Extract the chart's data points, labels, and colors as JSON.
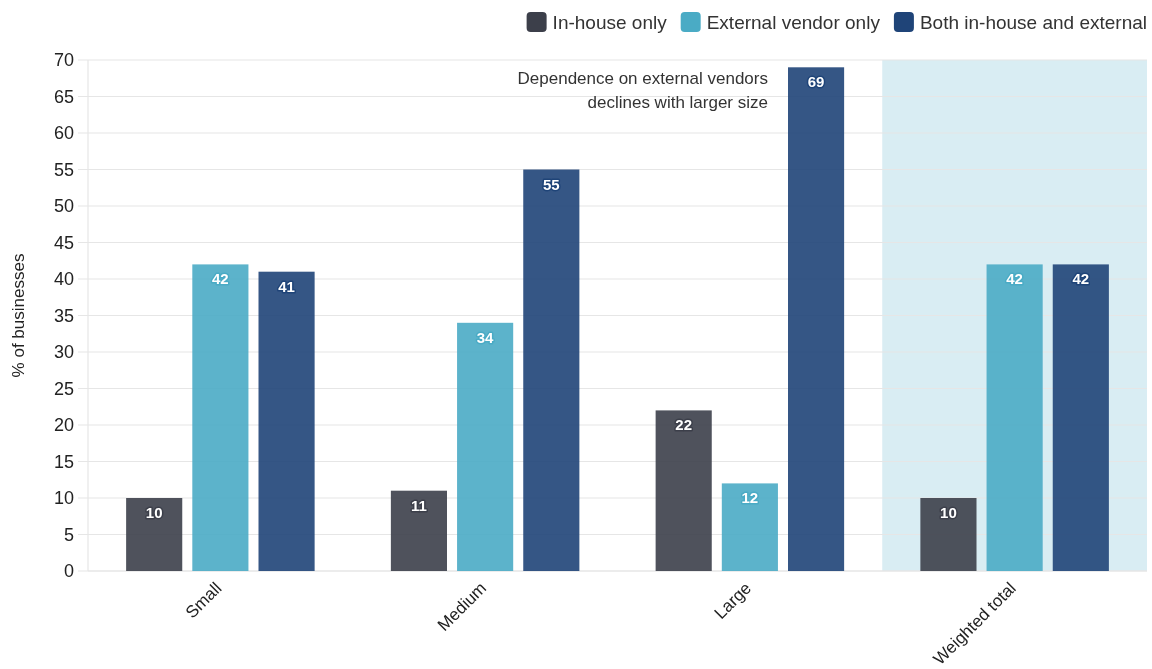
{
  "chart_data": {
    "type": "bar",
    "ylabel": "% of businesses",
    "categories": [
      "Small",
      "Medium",
      "Large",
      "Weighted total"
    ],
    "series": [
      {
        "name": "In-house only",
        "color": "#3c3f4a",
        "values": [
          10,
          11,
          22,
          10
        ]
      },
      {
        "name": "External vendor only",
        "color": "#4aabc5",
        "values": [
          42,
          34,
          12,
          42
        ]
      },
      {
        "name": "Both in-house and external",
        "color": "#1f4478",
        "values": [
          41,
          55,
          69,
          42
        ]
      }
    ],
    "ylim": [
      0,
      70
    ],
    "yticks": [
      0,
      5,
      10,
      15,
      20,
      25,
      30,
      35,
      40,
      45,
      50,
      55,
      60,
      65,
      70
    ],
    "grid": "y",
    "legend": "top right",
    "data_labels": true,
    "annotations": [
      "Dependence on external vendors\ndeclines with larger size"
    ],
    "bands": [
      {
        "axis": "x",
        "from": "Weighted total",
        "to": "Weighted total",
        "color": "#d9edf3"
      }
    ]
  }
}
